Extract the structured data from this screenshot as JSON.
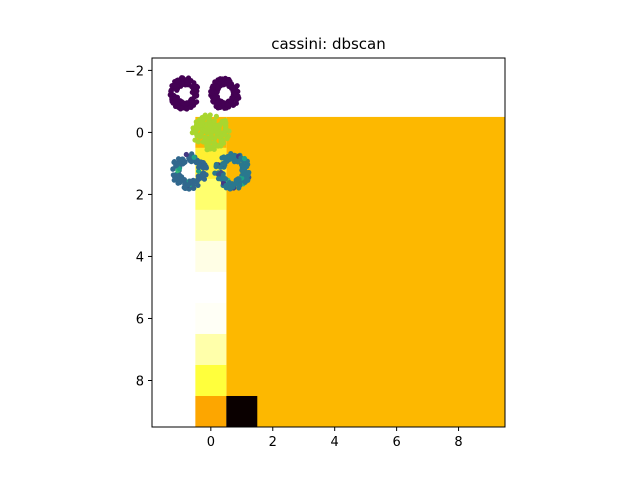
{
  "chart_data": {
    "type": "heatmap",
    "title": "cassini: dbscan",
    "xlabel": "",
    "ylabel": "",
    "xlim": [
      -1.9,
      9.5
    ],
    "ylim": [
      9.5,
      -2.4
    ],
    "y_inverted": true,
    "grid": false,
    "xticks": [
      0,
      2,
      4,
      6,
      8
    ],
    "yticks": [
      -2,
      0,
      2,
      4,
      6,
      8
    ],
    "xtick_labels": [
      "0",
      "2",
      "4",
      "6",
      "8"
    ],
    "ytick_labels": [
      "−2",
      "0",
      "2",
      "4",
      "6",
      "8"
    ],
    "heatmap": {
      "description_cells": "10x10 image; cell (row,col) centered on integer coordinates",
      "background_color": "#fdb800",
      "cells": [
        {
          "row": 0,
          "col": 0,
          "color": "#fdb800"
        },
        {
          "row": 1,
          "col": 0,
          "color": "#ffef32"
        },
        {
          "row": 2,
          "col": 0,
          "color": "#ffff6e"
        },
        {
          "row": 3,
          "col": 0,
          "color": "#ffffac"
        },
        {
          "row": 4,
          "col": 0,
          "color": "#fffee5"
        },
        {
          "row": 5,
          "col": 0,
          "color": "#ffffff"
        },
        {
          "row": 6,
          "col": 0,
          "color": "#fffff6"
        },
        {
          "row": 7,
          "col": 0,
          "color": "#ffffaa"
        },
        {
          "row": 8,
          "col": 0,
          "color": "#ffff3c"
        },
        {
          "row": 9,
          "col": 0,
          "color": "#fda600"
        },
        {
          "row": 9,
          "col": 1,
          "color": "#0a0000"
        }
      ]
    },
    "clusters": [
      {
        "label": 0,
        "color": "#440154",
        "shape": "ring",
        "center": [
          -0.85,
          -1.25
        ],
        "rx": 0.45,
        "ry": 0.5
      },
      {
        "label": 1,
        "color": "#440154",
        "shape": "ring",
        "center": [
          0.45,
          -1.25
        ],
        "rx": 0.45,
        "ry": 0.5
      },
      {
        "label": 2,
        "color": "#a9d62f",
        "shape": "disc",
        "center": [
          0.0,
          0.0
        ],
        "rx": 0.6,
        "ry": 0.6
      },
      {
        "label": 3,
        "color": "#31688e",
        "shape": "ring",
        "center": [
          -0.7,
          1.25
        ],
        "rx": 0.55,
        "ry": 0.55
      },
      {
        "label": 4,
        "color": "#2a788e",
        "shape": "ring",
        "center": [
          0.7,
          1.25
        ],
        "rx": 0.55,
        "ry": 0.55
      }
    ],
    "noise_colors": [
      "#1fa187",
      "#3b528b",
      "#443983",
      "#35b779"
    ]
  }
}
